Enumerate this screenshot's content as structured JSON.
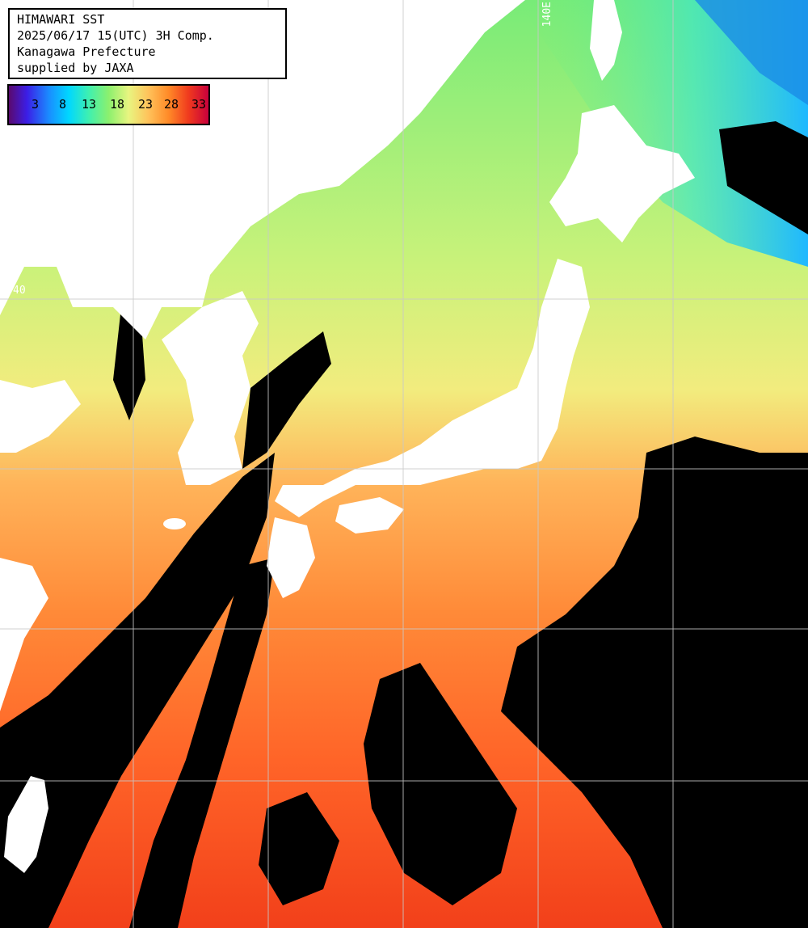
{
  "header": {
    "title": "HIMAWARI SST",
    "time": "2025/06/17 15(UTC) 3H Comp.",
    "area": "Kanagawa Prefecture",
    "credit": "supplied by JAXA"
  },
  "legend": {
    "labels": [
      "3",
      "8",
      "13",
      "18",
      "23",
      "28",
      "33"
    ],
    "colors": [
      "#5a0a6e",
      "#3b1ee6",
      "#1a8cff",
      "#00d7ff",
      "#3ff0b0",
      "#8cf06e",
      "#e8f580",
      "#ffc25a",
      "#ff8a28",
      "#f03a1e",
      "#c8003c"
    ]
  },
  "grid_labels": {
    "lon_140": "140E",
    "lat_40": "40"
  },
  "colors": {
    "land": "#ffffff",
    "cloud": "#000000",
    "grid": "#c8c8c8",
    "sea_cold": "#19d2ff",
    "sea_cool": "#8cf06e",
    "sea_mild": "#f0f582",
    "sea_warm": "#ff9a3c",
    "sea_hot": "#ff4a1e"
  }
}
